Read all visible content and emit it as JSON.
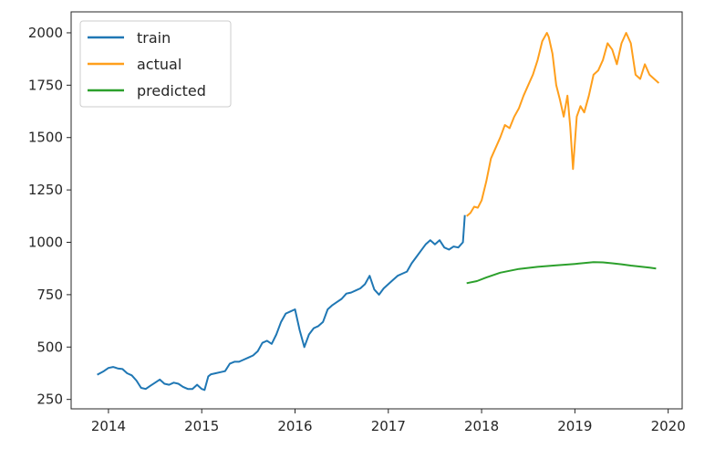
{
  "chart_data": {
    "type": "line",
    "title": "",
    "xlabel": "",
    "ylabel": "",
    "xlim": [
      2013.6,
      2020.15
    ],
    "ylim": [
      205,
      2100
    ],
    "x_ticks": [
      2014,
      2015,
      2016,
      2017,
      2018,
      2019,
      2020
    ],
    "x_tick_labels": [
      "2014",
      "2015",
      "2016",
      "2017",
      "2018",
      "2019",
      "2020"
    ],
    "y_ticks": [
      250,
      500,
      750,
      1000,
      1250,
      1500,
      1750,
      2000
    ],
    "y_tick_labels": [
      "250",
      "500",
      "750",
      "1000",
      "1250",
      "1500",
      "1750",
      "2000"
    ],
    "grid": false,
    "legend_position": "top-left",
    "series": [
      {
        "name": "train",
        "color": "#1f77b4",
        "points": [
          [
            2013.88,
            368
          ],
          [
            2013.95,
            385
          ],
          [
            2014.0,
            400
          ],
          [
            2014.05,
            405
          ],
          [
            2014.1,
            398
          ],
          [
            2014.15,
            395
          ],
          [
            2014.2,
            375
          ],
          [
            2014.25,
            365
          ],
          [
            2014.3,
            340
          ],
          [
            2014.35,
            305
          ],
          [
            2014.4,
            300
          ],
          [
            2014.45,
            315
          ],
          [
            2014.5,
            330
          ],
          [
            2014.55,
            345
          ],
          [
            2014.6,
            325
          ],
          [
            2014.65,
            320
          ],
          [
            2014.7,
            330
          ],
          [
            2014.75,
            325
          ],
          [
            2014.8,
            310
          ],
          [
            2014.85,
            300
          ],
          [
            2014.9,
            300
          ],
          [
            2014.95,
            320
          ],
          [
            2015.0,
            300
          ],
          [
            2015.03,
            295
          ],
          [
            2015.07,
            360
          ],
          [
            2015.1,
            370
          ],
          [
            2015.15,
            375
          ],
          [
            2015.2,
            380
          ],
          [
            2015.25,
            385
          ],
          [
            2015.3,
            420
          ],
          [
            2015.35,
            430
          ],
          [
            2015.4,
            430
          ],
          [
            2015.45,
            440
          ],
          [
            2015.5,
            450
          ],
          [
            2015.55,
            460
          ],
          [
            2015.6,
            480
          ],
          [
            2015.65,
            520
          ],
          [
            2015.7,
            530
          ],
          [
            2015.75,
            515
          ],
          [
            2015.8,
            560
          ],
          [
            2015.85,
            620
          ],
          [
            2015.9,
            660
          ],
          [
            2015.95,
            670
          ],
          [
            2016.0,
            680
          ],
          [
            2016.05,
            580
          ],
          [
            2016.1,
            500
          ],
          [
            2016.15,
            560
          ],
          [
            2016.2,
            590
          ],
          [
            2016.25,
            600
          ],
          [
            2016.3,
            620
          ],
          [
            2016.35,
            680
          ],
          [
            2016.4,
            700
          ],
          [
            2016.45,
            715
          ],
          [
            2016.5,
            730
          ],
          [
            2016.55,
            755
          ],
          [
            2016.6,
            760
          ],
          [
            2016.65,
            770
          ],
          [
            2016.7,
            780
          ],
          [
            2016.75,
            800
          ],
          [
            2016.8,
            840
          ],
          [
            2016.85,
            775
          ],
          [
            2016.9,
            750
          ],
          [
            2016.95,
            780
          ],
          [
            2017.0,
            800
          ],
          [
            2017.05,
            820
          ],
          [
            2017.1,
            840
          ],
          [
            2017.15,
            850
          ],
          [
            2017.2,
            860
          ],
          [
            2017.25,
            900
          ],
          [
            2017.3,
            930
          ],
          [
            2017.35,
            960
          ],
          [
            2017.4,
            990
          ],
          [
            2017.45,
            1010
          ],
          [
            2017.5,
            990
          ],
          [
            2017.55,
            1010
          ],
          [
            2017.6,
            975
          ],
          [
            2017.65,
            965
          ],
          [
            2017.7,
            980
          ],
          [
            2017.75,
            975
          ],
          [
            2017.8,
            1000
          ],
          [
            2017.82,
            1130
          ]
        ]
      },
      {
        "name": "actual",
        "color": "#ff9f1c",
        "points": [
          [
            2017.84,
            1125
          ],
          [
            2017.88,
            1140
          ],
          [
            2017.92,
            1170
          ],
          [
            2017.96,
            1165
          ],
          [
            2018.0,
            1200
          ],
          [
            2018.05,
            1290
          ],
          [
            2018.1,
            1400
          ],
          [
            2018.15,
            1450
          ],
          [
            2018.2,
            1500
          ],
          [
            2018.25,
            1560
          ],
          [
            2018.3,
            1545
          ],
          [
            2018.35,
            1600
          ],
          [
            2018.4,
            1640
          ],
          [
            2018.45,
            1700
          ],
          [
            2018.5,
            1750
          ],
          [
            2018.55,
            1800
          ],
          [
            2018.6,
            1870
          ],
          [
            2018.65,
            1960
          ],
          [
            2018.7,
            2000
          ],
          [
            2018.72,
            1980
          ],
          [
            2018.76,
            1900
          ],
          [
            2018.8,
            1750
          ],
          [
            2018.84,
            1680
          ],
          [
            2018.88,
            1600
          ],
          [
            2018.92,
            1700
          ],
          [
            2018.95,
            1550
          ],
          [
            2018.98,
            1350
          ],
          [
            2019.02,
            1600
          ],
          [
            2019.06,
            1650
          ],
          [
            2019.1,
            1620
          ],
          [
            2019.15,
            1700
          ],
          [
            2019.2,
            1800
          ],
          [
            2019.25,
            1820
          ],
          [
            2019.3,
            1870
          ],
          [
            2019.35,
            1950
          ],
          [
            2019.4,
            1920
          ],
          [
            2019.45,
            1850
          ],
          [
            2019.5,
            1950
          ],
          [
            2019.55,
            2000
          ],
          [
            2019.6,
            1950
          ],
          [
            2019.65,
            1800
          ],
          [
            2019.7,
            1780
          ],
          [
            2019.75,
            1850
          ],
          [
            2019.8,
            1800
          ],
          [
            2019.85,
            1780
          ],
          [
            2019.9,
            1760
          ]
        ]
      },
      {
        "name": "predicted",
        "color": "#2ca02c",
        "points": [
          [
            2017.84,
            805
          ],
          [
            2017.95,
            815
          ],
          [
            2018.05,
            832
          ],
          [
            2018.2,
            855
          ],
          [
            2018.4,
            873
          ],
          [
            2018.6,
            883
          ],
          [
            2018.8,
            890
          ],
          [
            2019.0,
            897
          ],
          [
            2019.2,
            905
          ],
          [
            2019.3,
            904
          ],
          [
            2019.4,
            900
          ],
          [
            2019.5,
            895
          ],
          [
            2019.6,
            889
          ],
          [
            2019.7,
            884
          ],
          [
            2019.8,
            879
          ],
          [
            2019.87,
            875
          ]
        ]
      }
    ]
  }
}
